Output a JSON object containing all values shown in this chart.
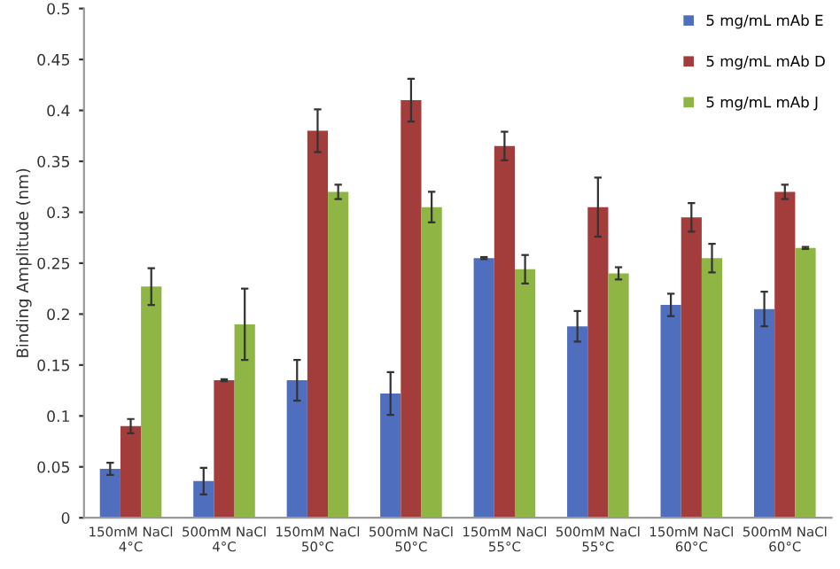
{
  "chart_data": {
    "type": "bar",
    "ylabel": "Binding Amplitude (nm)",
    "categories": [
      "150mM NaCl\n4°C",
      "500mM NaCl\n4°C",
      "150mM NaCl\n50°C",
      "500mM NaCl\n50°C",
      "150mM NaCl\n55°C",
      "500mM NaCl\n55°C",
      "150mM NaCl\n60°C",
      "500mM NaCl\n60°C"
    ],
    "series": [
      {
        "name": "5 mg/mL mAb E",
        "color": "#4f6fbe",
        "values": [
          0.048,
          0.036,
          0.135,
          0.122,
          0.255,
          0.188,
          0.209,
          0.205
        ],
        "errors": [
          0.006,
          0.013,
          0.02,
          0.021,
          0.001,
          0.015,
          0.011,
          0.017
        ]
      },
      {
        "name": "5 mg/mL mAb D",
        "color": "#a33d3b",
        "values": [
          0.09,
          0.135,
          0.38,
          0.41,
          0.365,
          0.305,
          0.295,
          0.32
        ],
        "errors": [
          0.007,
          0.001,
          0.021,
          0.021,
          0.014,
          0.029,
          0.014,
          0.007
        ]
      },
      {
        "name": "5 mg/mL mAb J",
        "color": "#8fb545",
        "values": [
          0.227,
          0.19,
          0.32,
          0.305,
          0.244,
          0.24,
          0.255,
          0.265
        ],
        "errors": [
          0.018,
          0.035,
          0.007,
          0.015,
          0.014,
          0.006,
          0.014,
          0.001
        ]
      }
    ],
    "ylim": [
      0,
      0.5
    ],
    "yticks": [
      0,
      0.05,
      0.1,
      0.15,
      0.2,
      0.25,
      0.3,
      0.35,
      0.4,
      0.45,
      0.5
    ],
    "grid": false,
    "legend": "top right"
  }
}
